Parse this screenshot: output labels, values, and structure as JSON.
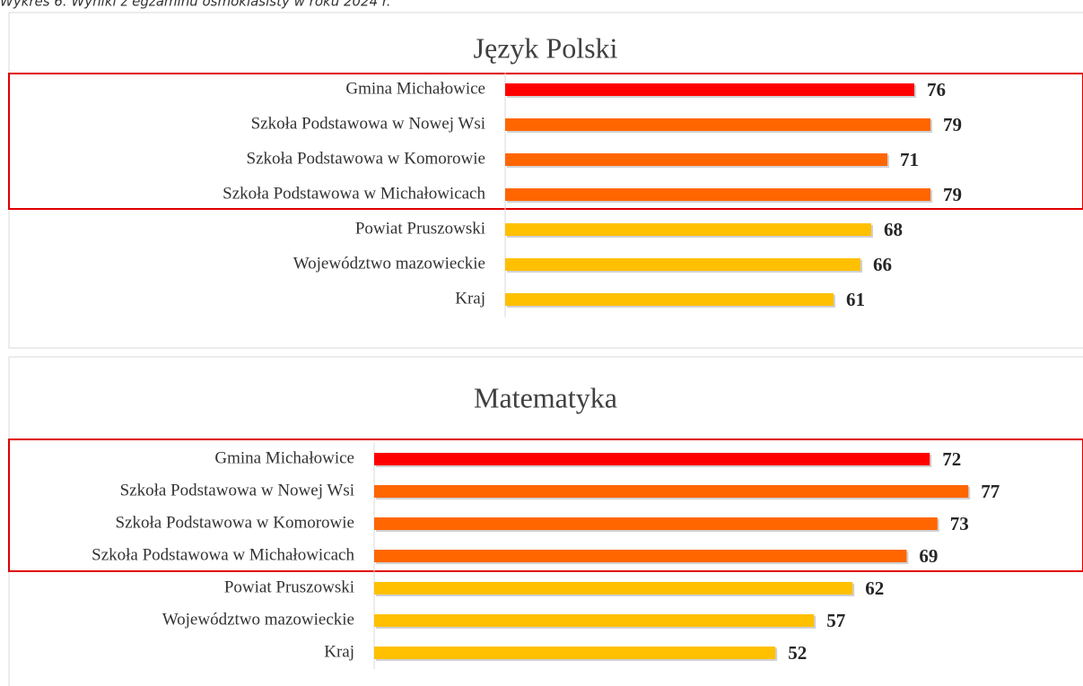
{
  "caption": "Wykres 6. Wyniki z egzaminu ósmoklasisty w roku 2024 r.",
  "chart_data": [
    {
      "type": "bar",
      "orientation": "horizontal",
      "title": "Język Polski",
      "categories": [
        "Gmina Michałowice",
        "Szkoła Podstawowa w Nowej Wsi",
        "Szkoła Podstawowa  w Komorowie",
        "Szkoła Podstawowa w Michałowicach",
        "Powiat Pruszowski",
        "Województwo mazowieckie",
        "Kraj"
      ],
      "values": [
        76,
        79,
        71,
        79,
        68,
        66,
        61
      ],
      "colors": [
        "#ff0000",
        "#ff6600",
        "#ff6600",
        "#ff6600",
        "#ffc000",
        "#ffc000",
        "#ffc000"
      ],
      "xlim": [
        0,
        100
      ]
    },
    {
      "type": "bar",
      "orientation": "horizontal",
      "title": "Matematyka",
      "categories": [
        "Gmina Michałowice",
        "Szkoła Podstawowa w Nowej Wsi",
        "Szkoła Podstawowa  w Komorowie",
        "Szkoła Podstawowa w Michałowicach",
        "Powiat Pruszowski",
        "Województwo mazowieckie",
        "Kraj"
      ],
      "values": [
        72,
        77,
        73,
        69,
        62,
        57,
        52
      ],
      "colors": [
        "#ff0000",
        "#ff6600",
        "#ff6600",
        "#ff6600",
        "#ffc000",
        "#ffc000",
        "#ffc000"
      ],
      "xlim": [
        0,
        100
      ]
    }
  ]
}
